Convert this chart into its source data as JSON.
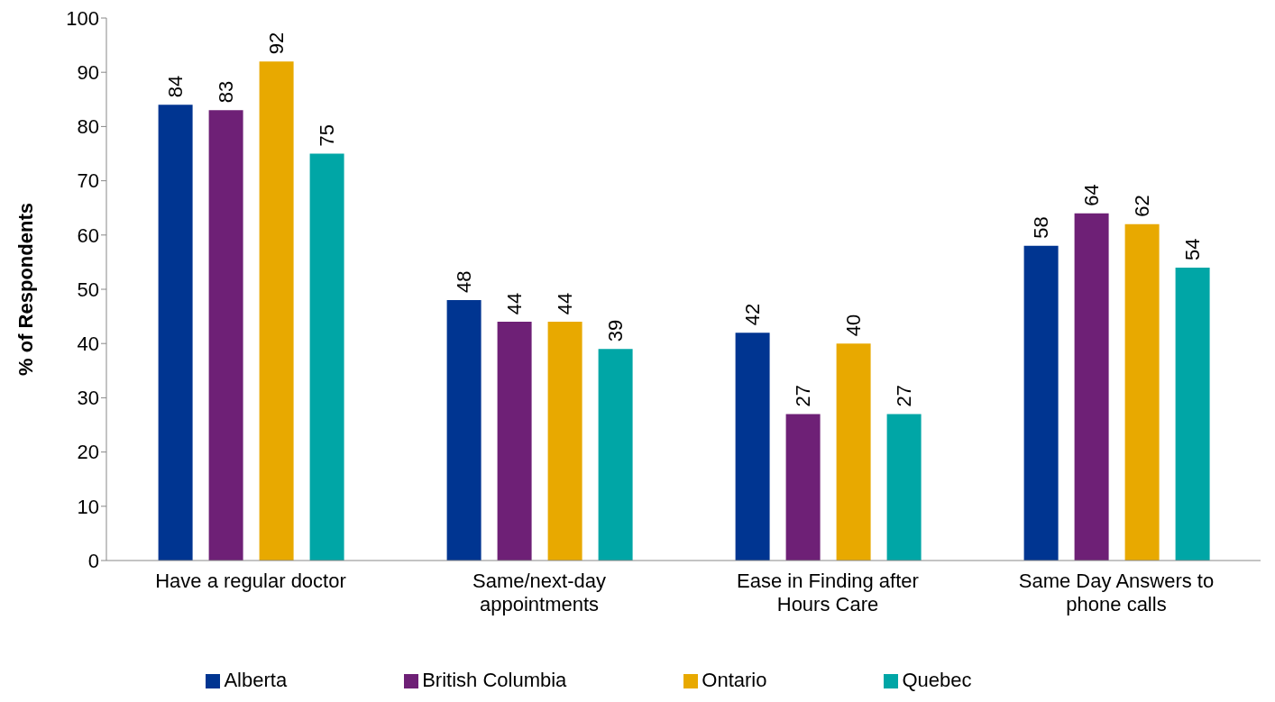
{
  "chart_data": {
    "type": "bar",
    "ylabel": "% of Respondents",
    "categories": [
      "Have a regular doctor",
      "Same/next-day appointments",
      "Ease in Finding after Hours Care",
      "Same Day Answers to phone calls"
    ],
    "series": [
      {
        "name": "Alberta",
        "color": "#003591",
        "values": [
          84,
          48,
          42,
          58
        ]
      },
      {
        "name": "British Columbia",
        "color": "#6e2076",
        "values": [
          83,
          44,
          27,
          64
        ]
      },
      {
        "name": "Ontario",
        "color": "#e8a900",
        "values": [
          92,
          44,
          40,
          62
        ]
      },
      {
        "name": "Quebec",
        "color": "#00a6a6",
        "values": [
          75,
          39,
          27,
          54
        ]
      }
    ],
    "ylim": [
      0,
      100
    ],
    "yticks": [
      0,
      10,
      20,
      30,
      40,
      50,
      60,
      70,
      80,
      90,
      100
    ],
    "grid": false,
    "legend": "bottom",
    "data_labels": true
  }
}
